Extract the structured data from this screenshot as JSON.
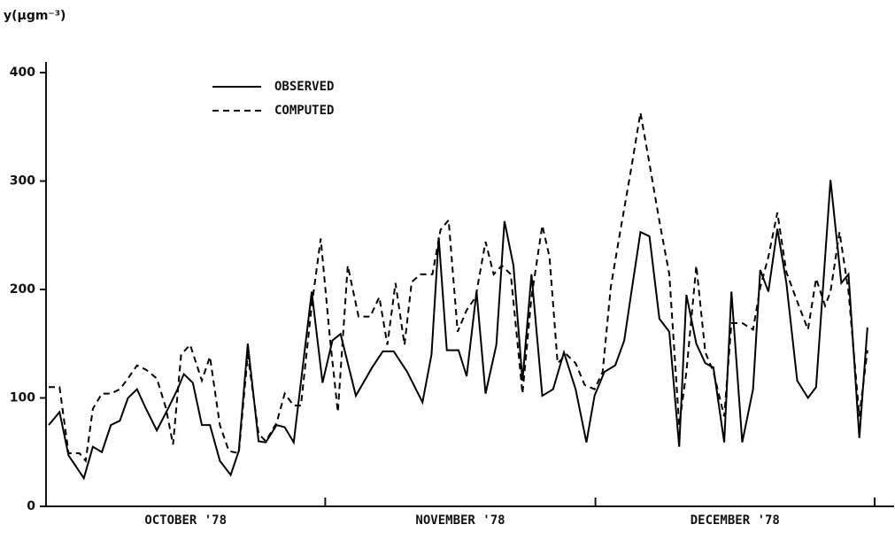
{
  "chart_data": {
    "type": "line",
    "ylabel": "y(μgm⁻³)",
    "months": [
      "OCTOBER '78",
      "NOVEMBER '78",
      "DECEMBER '78"
    ],
    "xlim": [
      0,
      92
    ],
    "xticks": [
      31,
      61,
      92
    ],
    "ylim": [
      0,
      400
    ],
    "yticks": [
      0,
      100,
      200,
      300,
      400
    ],
    "legend": "top-left",
    "series": [
      {
        "name": "OBSERVED",
        "color": "#000000",
        "dash": "solid",
        "x": [
          0.3,
          1.5,
          2.5,
          4.2,
          5.2,
          6.2,
          7.2,
          8.2,
          9.1,
          10.1,
          11.1,
          12.3,
          13.6,
          14.6,
          15.3,
          16.3,
          17.3,
          18.2,
          19.3,
          20.5,
          21.4,
          22.4,
          23.6,
          24.4,
          25.6,
          26.5,
          27.5,
          29.5,
          30.7,
          31.8,
          32.7,
          34.4,
          36.2,
          37.4,
          38.6,
          40.1,
          41.8,
          42.8,
          43.6,
          44.5,
          45.8,
          46.7,
          47.8,
          48.8,
          50.0,
          50.9,
          51.9,
          52.9,
          53.9,
          55.1,
          56.3,
          57.5,
          58.8,
          60.0,
          60.9,
          62.0,
          63.2,
          64.2,
          65.0,
          66.0,
          67.0,
          68.1,
          69.2,
          70.3,
          71.1,
          72.2,
          73.2,
          74.1,
          75.3,
          76.1,
          77.3,
          78.5,
          79.3,
          80.2,
          81.2,
          82.2,
          83.4,
          84.6,
          85.5,
          87.1,
          88.3,
          89.1,
          90.3,
          91.2
        ],
        "values": [
          75,
          87,
          47,
          26,
          55,
          50,
          75,
          79,
          100,
          108,
          90,
          70,
          91,
          108,
          122,
          114,
          75,
          75,
          42,
          29,
          51,
          150,
          60,
          59,
          75,
          73,
          59,
          198,
          114,
          153,
          159,
          102,
          128,
          143,
          143,
          124,
          96,
          140,
          248,
          144,
          144,
          120,
          198,
          104,
          149,
          263,
          222,
          116,
          214,
          102,
          108,
          142,
          108,
          59,
          102,
          124,
          130,
          153,
          198,
          253,
          249,
          173,
          161,
          55,
          195,
          150,
          132,
          128,
          59,
          198,
          59,
          108,
          218,
          198,
          256,
          206,
          116,
          100,
          110,
          301,
          206,
          214,
          63,
          165
        ]
      },
      {
        "name": "COMPUTED",
        "color": "#000000",
        "dash": "dashed",
        "x": [
          0.3,
          1.5,
          2.5,
          3.7,
          4.4,
          5.2,
          6.2,
          7.2,
          8.2,
          9.1,
          10.1,
          11.1,
          12.3,
          13.3,
          14.1,
          15.0,
          16.0,
          17.3,
          18.2,
          19.3,
          20.3,
          21.4,
          22.4,
          23.6,
          24.4,
          25.6,
          26.5,
          27.5,
          28.3,
          29.5,
          30.5,
          31.5,
          32.4,
          33.5,
          34.7,
          36.0,
          37.0,
          37.9,
          38.8,
          39.8,
          40.6,
          41.6,
          42.9,
          43.8,
          44.7,
          45.7,
          46.7,
          47.7,
          48.8,
          49.7,
          50.6,
          51.6,
          52.9,
          53.9,
          55.1,
          55.9,
          56.8,
          57.8,
          58.8,
          59.8,
          60.9,
          61.8,
          62.7,
          63.7,
          64.9,
          66.0,
          67.0,
          68.1,
          69.2,
          70.3,
          71.1,
          72.2,
          73.2,
          74.1,
          75.3,
          76.1,
          77.3,
          78.5,
          79.3,
          80.2,
          81.2,
          82.2,
          83.4,
          84.6,
          85.5,
          86.5,
          87.1,
          88.1,
          89.1,
          90.3,
          91.2
        ],
        "values": [
          110,
          110,
          49,
          49,
          42,
          90,
          104,
          104,
          108,
          118,
          130,
          126,
          118,
          91,
          57,
          140,
          149,
          116,
          138,
          75,
          51,
          49,
          140,
          67,
          60,
          77,
          104,
          93,
          93,
          185,
          247,
          157,
          87,
          222,
          175,
          175,
          193,
          149,
          206,
          149,
          207,
          214,
          214,
          255,
          264,
          161,
          181,
          193,
          244,
          214,
          222,
          214,
          104,
          193,
          259,
          230,
          132,
          140,
          132,
          112,
          108,
          124,
          202,
          251,
          308,
          363,
          316,
          263,
          214,
          75,
          124,
          222,
          142,
          124,
          83,
          169,
          169,
          163,
          202,
          230,
          271,
          216,
          189,
          163,
          210,
          185,
          198,
          253,
          198,
          83,
          144
        ]
      }
    ]
  }
}
